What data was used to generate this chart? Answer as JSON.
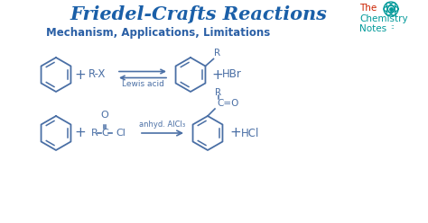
{
  "title": "Friedel-Crafts Reactions",
  "subtitle": "Mechanism, Applications, Limitations",
  "bg_color": "#ffffff",
  "title_color": "#1a5fa8",
  "subtitle_color": "#2a5fa5",
  "chem_color": "#4a6fa5",
  "logo_the_color": "#cc2200",
  "logo_chem_color": "#009999",
  "logo_notes_color": "#009999",
  "logo_atom_color": "#009999",
  "rxn1_label": "Lewis acid",
  "rxn2_label": "anhyd. AlCl₃"
}
